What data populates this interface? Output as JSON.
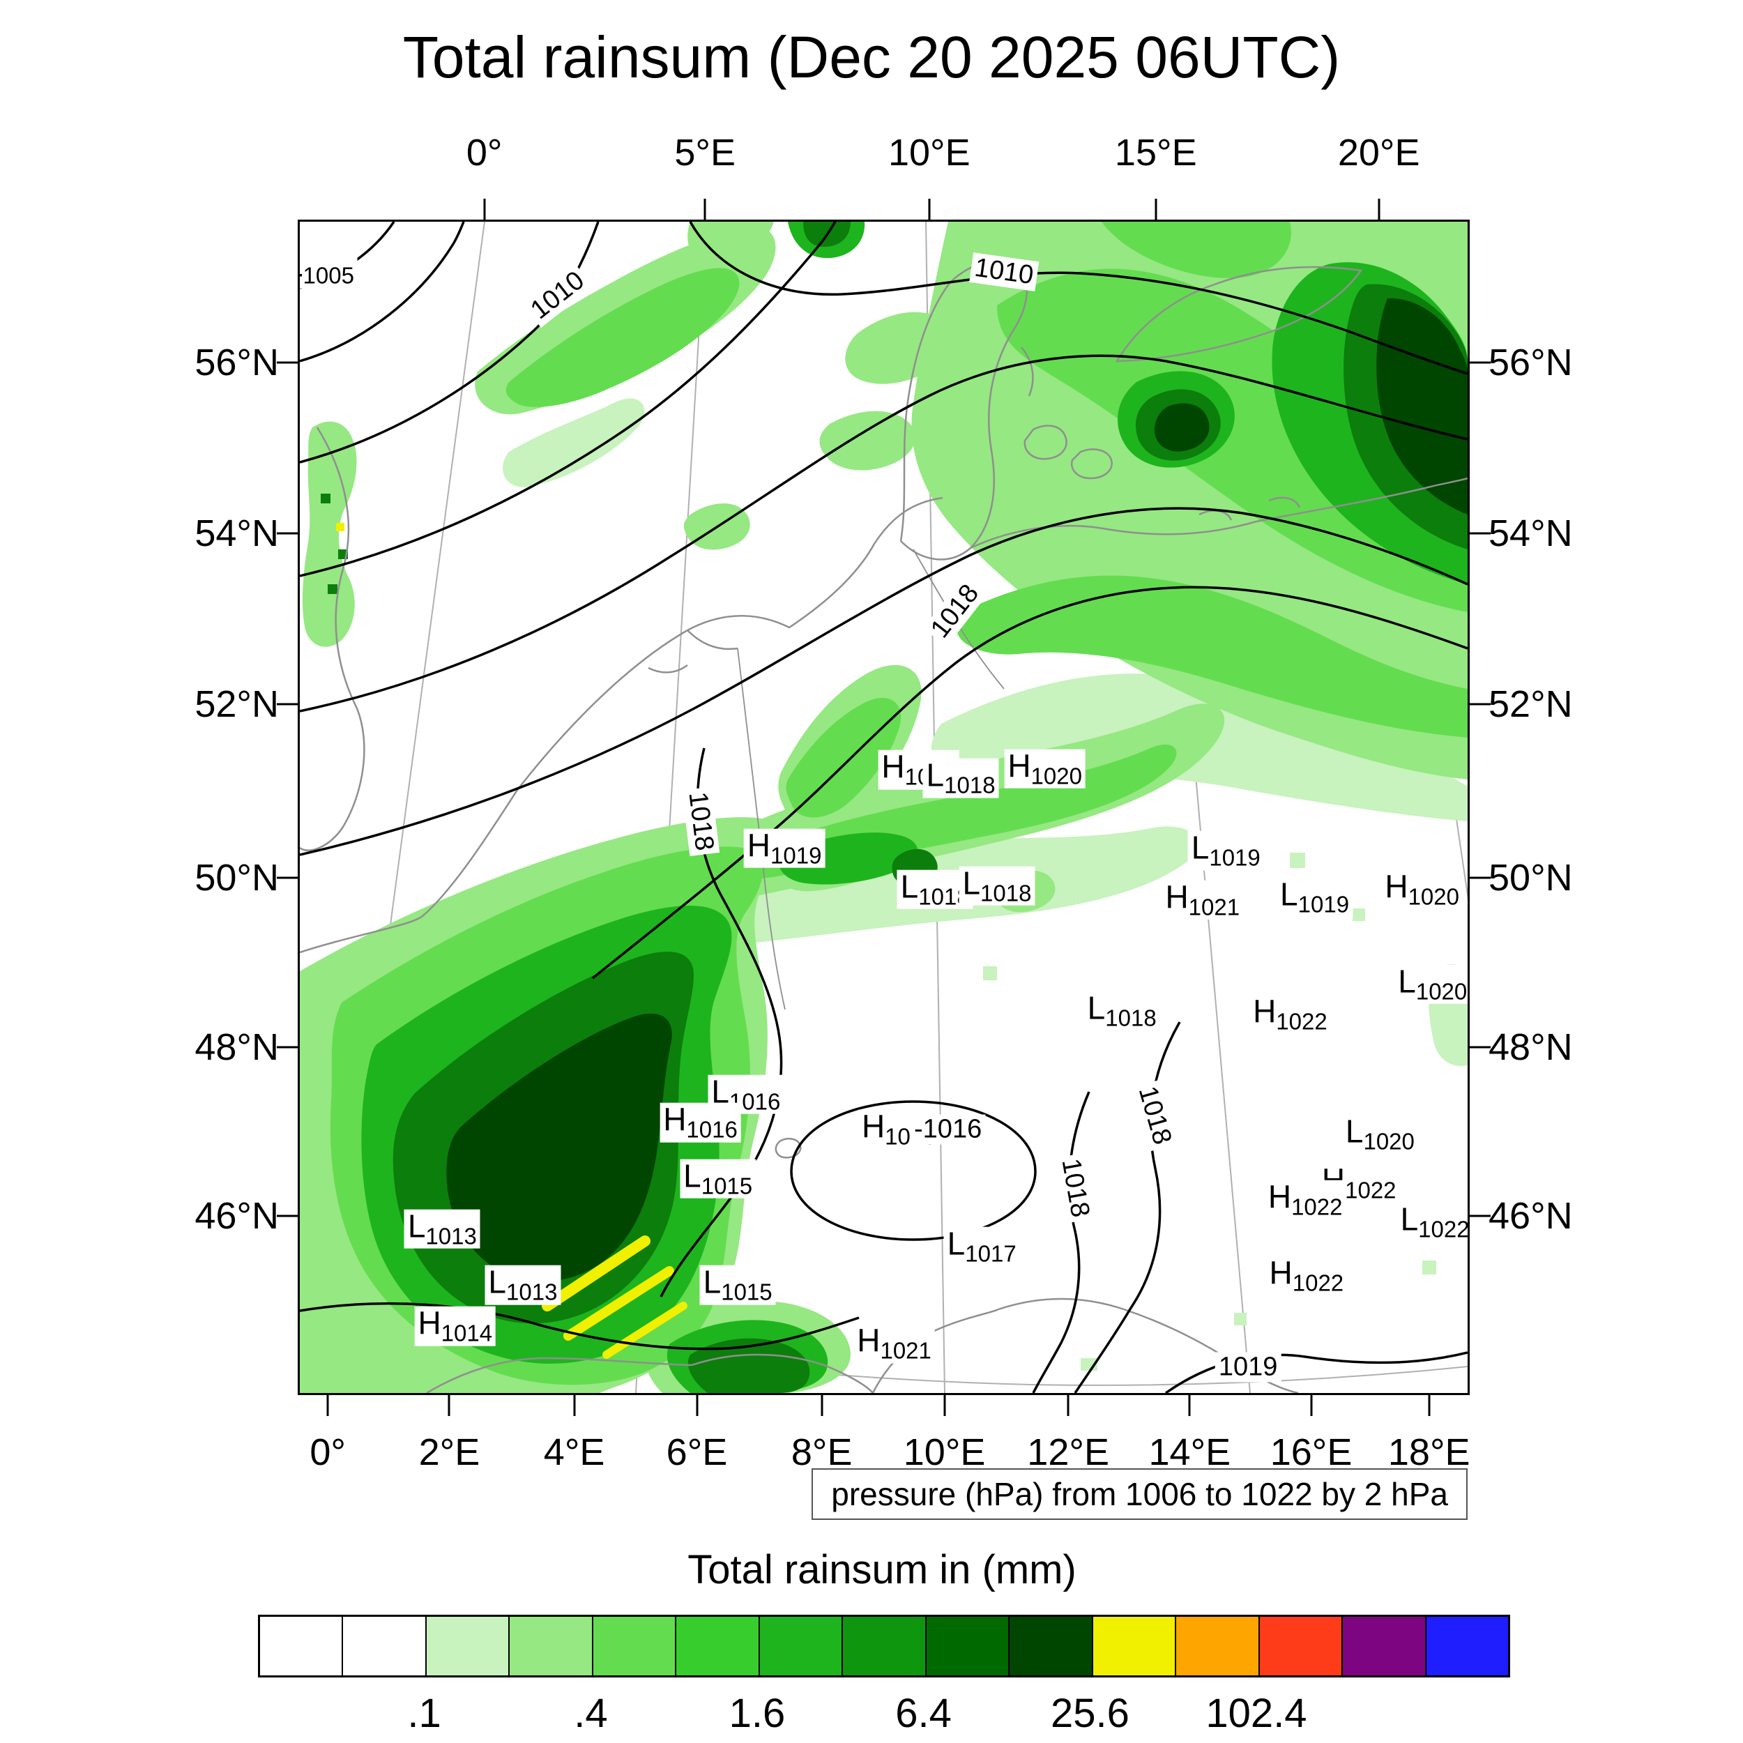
{
  "title": "Total rainsum (Dec 20 2025 06UTC)",
  "pressure_note": "pressure (hPa) from 1006 to 1022 by 2 hPa",
  "legend": {
    "title": "Total rainsum in (mm)",
    "tick_labels": [
      ".1",
      ".4",
      "1.6",
      "6.4",
      "25.6",
      "102.4"
    ],
    "tick_positions_pct": [
      13.33,
      26.67,
      40.0,
      53.33,
      66.67,
      80.0
    ],
    "colors": [
      "#ffffff",
      "#ffffff",
      "#c8f2be",
      "#96e882",
      "#64dc50",
      "#37cd2d",
      "#1eb41e",
      "#0f960f",
      "#006900",
      "#004500",
      "#f0f000",
      "#ffa500",
      "#ff3c19",
      "#7d0582",
      "#1e1eff"
    ]
  },
  "axes": {
    "top": [
      {
        "label": "0°",
        "pct": 15.8
      },
      {
        "label": "5°E",
        "pct": 34.7
      },
      {
        "label": "10°E",
        "pct": 53.9
      },
      {
        "label": "15°E",
        "pct": 73.3
      },
      {
        "label": "20°E",
        "pct": 92.4
      }
    ],
    "bottom": [
      {
        "label": "0°",
        "pct": 2.4
      },
      {
        "label": "2°E",
        "pct": 12.8
      },
      {
        "label": "4°E",
        "pct": 23.5
      },
      {
        "label": "6°E",
        "pct": 34.0
      },
      {
        "label": "8°E",
        "pct": 44.7
      },
      {
        "label": "10°E",
        "pct": 55.2
      },
      {
        "label": "12°E",
        "pct": 65.8
      },
      {
        "label": "14°E",
        "pct": 76.2
      },
      {
        "label": "16°E",
        "pct": 86.6
      },
      {
        "label": "18°E",
        "pct": 96.7
      }
    ],
    "left": [
      {
        "label": "56°N",
        "pct": 12.0
      },
      {
        "label": "54°N",
        "pct": 26.6
      },
      {
        "label": "52°N",
        "pct": 41.2
      },
      {
        "label": "50°N",
        "pct": 56.0
      },
      {
        "label": "48°N",
        "pct": 70.5
      },
      {
        "label": "46°N",
        "pct": 84.9
      }
    ],
    "right": [
      {
        "label": "56°N",
        "pct": 12.0
      },
      {
        "label": "54°N",
        "pct": 26.6
      },
      {
        "label": "52°N",
        "pct": 41.2
      },
      {
        "label": "50°N",
        "pct": 56.0
      },
      {
        "label": "48°N",
        "pct": 70.5
      },
      {
        "label": "46°N",
        "pct": 84.9
      }
    ]
  },
  "chart_data": {
    "type": "heatmap",
    "title": "Total rainsum (Dec 20 2025 06UTC)",
    "colorbar_title": "Total rainsum in (mm)",
    "units": "mm",
    "levels_mm": [
      0.1,
      0.2,
      0.4,
      0.8,
      1.6,
      3.2,
      6.4,
      12.8,
      25.6,
      51.2,
      102.4,
      204.8
    ],
    "labeled_levels_mm": [
      0.1,
      0.4,
      1.6,
      6.4,
      25.6,
      102.4
    ],
    "pressure_overlay": {
      "caption": "pressure (hPa) from 1006 to 1022 by 2 hPa",
      "min_hpa": 1006,
      "max_hpa": 1022,
      "interval_hpa": 2
    },
    "lon_tick_labels_top": [
      "0°",
      "5°E",
      "10°E",
      "15°E",
      "20°E"
    ],
    "lon_tick_labels_bottom": [
      "0°",
      "2°E",
      "4°E",
      "6°E",
      "8°E",
      "10°E",
      "12°E",
      "14°E",
      "16°E",
      "18°E"
    ],
    "lat_tick_labels": [
      "56°N",
      "54°N",
      "52°N",
      "50°N",
      "48°N",
      "46°N"
    ],
    "precip_summary": [
      {
        "region": "southwest (France / Alps)",
        "max_bin_mm": "25.6-51.2",
        "note": "large dark-green area with yellow streaks"
      },
      {
        "region": "northeast (Baltic / Scandinavia)",
        "max_bin_mm": "12.8-25.6",
        "note": "broad green shield, dark cores at top-right"
      },
      {
        "region": "central band 50-52N",
        "max_bin_mm": "3.2-6.4",
        "note": "patchy diagonal rain band"
      },
      {
        "region": "northwest band near 56N",
        "max_bin_mm": "1.6-3.2",
        "note": "narrow diagonal band"
      }
    ],
    "pressure_centers": [
      {
        "kind": "L",
        "value": "1005",
        "x_pct": 1.7,
        "y_pct": 4.0
      },
      {
        "kind": "H",
        "value": "1018",
        "x_pct": 53.0,
        "y_pct": 46.8
      },
      {
        "kind": "L",
        "value": "1018",
        "x_pct": 56.6,
        "y_pct": 47.5
      },
      {
        "kind": "H",
        "value": "1020",
        "x_pct": 63.8,
        "y_pct": 46.7
      },
      {
        "kind": "H",
        "value": "1019",
        "x_pct": 41.5,
        "y_pct": 53.5
      },
      {
        "kind": "L",
        "value": "1018",
        "x_pct": 54.4,
        "y_pct": 57.0
      },
      {
        "kind": "L",
        "value": "1018",
        "x_pct": 59.7,
        "y_pct": 56.7
      },
      {
        "kind": "L",
        "value": "1019",
        "x_pct": 79.3,
        "y_pct": 53.7
      },
      {
        "kind": "H",
        "value": "1021",
        "x_pct": 77.3,
        "y_pct": 57.9
      },
      {
        "kind": "L",
        "value": "1019",
        "x_pct": 86.9,
        "y_pct": 57.7
      },
      {
        "kind": "H",
        "value": "1020",
        "x_pct": 96.1,
        "y_pct": 57.0
      },
      {
        "kind": "L",
        "value": "1020",
        "x_pct": 97.0,
        "y_pct": 65.1
      },
      {
        "kind": "L",
        "value": "1018",
        "x_pct": 70.4,
        "y_pct": 67.4
      },
      {
        "kind": "H",
        "value": "1022",
        "x_pct": 84.8,
        "y_pct": 67.7
      },
      {
        "kind": "L",
        "value": "1016",
        "x_pct": 38.2,
        "y_pct": 74.5
      },
      {
        "kind": "H",
        "value": "1016",
        "x_pct": 34.3,
        "y_pct": 76.9
      },
      {
        "kind": "H",
        "value": "1018",
        "x_pct": 51.3,
        "y_pct": 77.5
      },
      {
        "kind": "L",
        "value": "1015",
        "x_pct": 35.8,
        "y_pct": 81.7
      },
      {
        "kind": "L",
        "value": "1020",
        "x_pct": 92.5,
        "y_pct": 77.9
      },
      {
        "kind": "H",
        "value": "1022",
        "x_pct": 90.7,
        "y_pct": 82.1
      },
      {
        "kind": "H",
        "value": "1022",
        "x_pct": 86.1,
        "y_pct": 83.5
      },
      {
        "kind": "L",
        "value": "1022",
        "x_pct": 97.2,
        "y_pct": 85.4
      },
      {
        "kind": "L",
        "value": "1013",
        "x_pct": 12.2,
        "y_pct": 86.0
      },
      {
        "kind": "L",
        "value": "1017",
        "x_pct": 58.4,
        "y_pct": 87.5
      },
      {
        "kind": "L",
        "value": "1013",
        "x_pct": 19.1,
        "y_pct": 90.8
      },
      {
        "kind": "L",
        "value": "1015",
        "x_pct": 37.5,
        "y_pct": 90.8
      },
      {
        "kind": "H",
        "value": "1022",
        "x_pct": 86.2,
        "y_pct": 90.0
      },
      {
        "kind": "H",
        "value": "1014",
        "x_pct": 13.3,
        "y_pct": 94.3
      },
      {
        "kind": "H",
        "value": "1021",
        "x_pct": 50.9,
        "y_pct": 95.8
      }
    ],
    "contour_labels": [
      {
        "text": "1010",
        "x_pct": 22.1,
        "y_pct": 6.3,
        "rot_deg": -38
      },
      {
        "text": "1010",
        "x_pct": 60.3,
        "y_pct": 4.3,
        "rot_deg": 8
      },
      {
        "text": "1018",
        "x_pct": 56.1,
        "y_pct": 33.3,
        "rot_deg": -52
      },
      {
        "text": "1018",
        "x_pct": 34.3,
        "y_pct": 51.2,
        "rot_deg": 83
      },
      {
        "text": "-1016",
        "x_pct": 55.5,
        "y_pct": 77.5,
        "rot_deg": 0
      },
      {
        "text": "1018",
        "x_pct": 66.4,
        "y_pct": 82.5,
        "rot_deg": 80
      },
      {
        "text": "1018",
        "x_pct": 73.2,
        "y_pct": 76.3,
        "rot_deg": 74
      },
      {
        "text": "1019",
        "x_pct": 81.2,
        "y_pct": 97.8,
        "rot_deg": 0
      }
    ]
  }
}
